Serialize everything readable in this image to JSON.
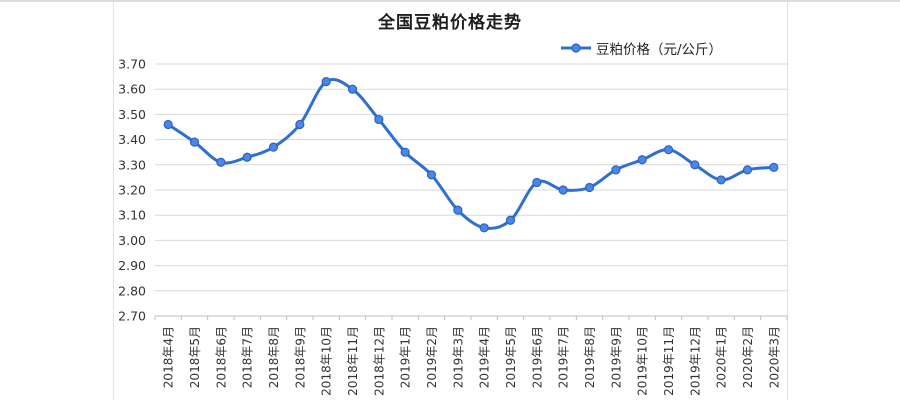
{
  "page": {
    "background": "#ffffff"
  },
  "header": {
    "title": "全国豆粕价格走势"
  },
  "legend": {
    "label": "豆粕价格（元/公斤）"
  },
  "chart_data": {
    "type": "line",
    "smooth": true,
    "title": "全国豆粕价格走势",
    "xlabel": "",
    "ylabel": "",
    "ylim": [
      2.7,
      3.7
    ],
    "ytick_step": 0.1,
    "yticks": [
      "3.70",
      "3.60",
      "3.50",
      "3.40",
      "3.30",
      "3.20",
      "3.10",
      "3.00",
      "2.90",
      "2.80",
      "2.70"
    ],
    "grid": true,
    "legend_position": "top-right",
    "categories": [
      "2018年4月",
      "2018年5月",
      "2018年6月",
      "2018年7月",
      "2018年8月",
      "2018年9月",
      "2018年10月",
      "2018年11月",
      "2018年12月",
      "2019年1月",
      "2019年2月",
      "2019年3月",
      "2019年4月",
      "2019年5月",
      "2019年6月",
      "2019年7月",
      "2019年8月",
      "2019年9月",
      "2019年10月",
      "2019年11月",
      "2019年12月",
      "2020年1月",
      "2020年2月",
      "2020年3月"
    ],
    "series": [
      {
        "name": "豆粕价格（元/公斤）",
        "values": [
          3.46,
          3.39,
          3.31,
          3.33,
          3.37,
          3.46,
          3.63,
          3.6,
          3.48,
          3.35,
          3.26,
          3.12,
          3.05,
          3.08,
          3.23,
          3.2,
          3.21,
          3.28,
          3.32,
          3.36,
          3.3,
          3.24,
          3.28,
          3.29
        ]
      }
    ],
    "colors": {
      "line": "#2e6fd1",
      "marker_fill": "#4a87e8",
      "marker_stroke": "#2b63bf",
      "gridline": "#d9d9d9",
      "axis": "#bfbfbf",
      "tick_text": "#333333",
      "title_text": "#1f1f1f"
    }
  }
}
